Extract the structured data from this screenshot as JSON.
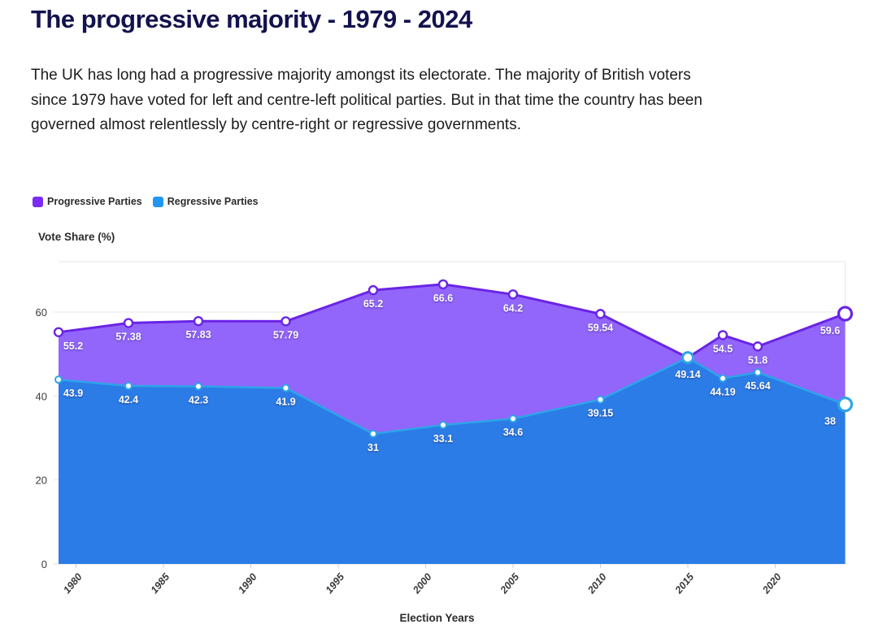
{
  "page": {
    "title": "The progressive majority - 1979 - 2024",
    "description": "The UK has long had a progressive majority amongst its electorate. The majority of British voters since 1979 have voted for left and centre-left political parties. But in that time the country has been governed almost relentlessly by centre-right or regressive governments."
  },
  "legend": {
    "items": [
      {
        "label": "Progressive Parties",
        "color": "#7c2bf2"
      },
      {
        "label": "Regressive Parties",
        "color": "#2196f3"
      }
    ]
  },
  "chart_data": {
    "type": "area",
    "title": "",
    "ylabel": "Vote Share (%)",
    "xlabel": "Election Years",
    "x": [
      1979,
      1983,
      1987,
      1992,
      1997,
      2001,
      2005,
      2010,
      2015,
      2017,
      2019,
      2024
    ],
    "x_ticks": [
      "1980",
      "1985",
      "1990",
      "1995",
      "2000",
      "2005",
      "2010",
      "2015",
      "2020"
    ],
    "y_ticks": [
      0,
      20,
      40,
      60
    ],
    "xlim": [
      1979,
      2024
    ],
    "ylim": [
      0,
      72
    ],
    "grid": true,
    "legend_position": "top-left",
    "value_label_color": "#ffffff",
    "series": [
      {
        "name": "Progressive Parties",
        "values": [
          55.2,
          57.38,
          57.83,
          57.79,
          65.2,
          66.6,
          64.2,
          59.54,
          49.14,
          54.5,
          51.8,
          59.6
        ],
        "labels": [
          "55.2",
          "57.38",
          "57.83",
          "57.79",
          "65.2",
          "66.6",
          "64.2",
          "59.54",
          "49.14",
          "54.5",
          "51.8",
          "59.6"
        ],
        "line_color": "#6a24e6",
        "fill_color": "#9266fb"
      },
      {
        "name": "Regressive Parties",
        "values": [
          43.9,
          42.4,
          42.3,
          41.9,
          31,
          33.1,
          34.6,
          39.15,
          49.14,
          44.19,
          45.64,
          38
        ],
        "labels": [
          "43.9",
          "42.4",
          "42.3",
          "41.9",
          "31",
          "33.1",
          "34.6",
          "39.15",
          "",
          "44.19",
          "45.64",
          "38"
        ],
        "line_color": "#2ea4e8",
        "fill_color": "#2b7ce6"
      }
    ]
  }
}
